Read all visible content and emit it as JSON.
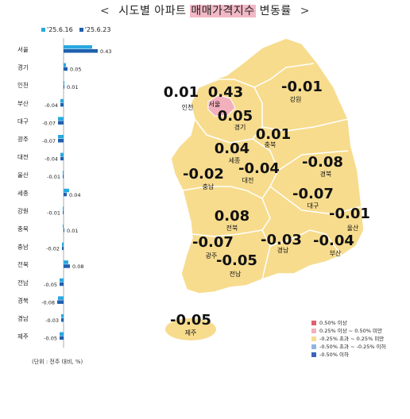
{
  "title": {
    "left_arrow": "<",
    "pre": "시도별 아파트 ",
    "highlight": "매매가격지수",
    "post": " 변동률",
    "right_arrow": ">"
  },
  "chart_data": {
    "type": "bar",
    "orientation": "horizontal",
    "categories": [
      "서울",
      "경기",
      "인천",
      "부산",
      "대구",
      "광주",
      "대전",
      "울산",
      "세종",
      "강원",
      "충북",
      "충남",
      "전북",
      "전남",
      "경북",
      "경남",
      "제주"
    ],
    "series": [
      {
        "name": "'25.6.16",
        "color": "#29a8e0",
        "values": [
          0.36,
          0.03,
          0.01,
          -0.04,
          -0.07,
          -0.07,
          -0.04,
          -0.01,
          0.07,
          -0.01,
          -0.01,
          -0.02,
          0.06,
          -0.05,
          -0.07,
          -0.03,
          -0.05
        ]
      },
      {
        "name": "'25.6.23",
        "color": "#1f5fae",
        "values": [
          0.43,
          0.05,
          0.01,
          -0.04,
          -0.07,
          -0.07,
          -0.04,
          -0.01,
          0.04,
          -0.01,
          0.01,
          -0.02,
          0.08,
          -0.05,
          -0.08,
          -0.03,
          -0.05
        ]
      }
    ],
    "value_labels": [
      "0.43",
      "0.05",
      "0.01",
      "-0.04",
      "-0.07",
      "-0.07",
      "-0.04",
      "-0.01",
      "0.04",
      "-0.01",
      "0.01",
      "-0.02",
      "0.08",
      "-0.05",
      "-0.08",
      "-0.03",
      "-0.05"
    ],
    "xlim": [
      -0.15,
      0.5
    ],
    "note": "(단위 : 전주 대비, %)"
  },
  "map": {
    "regions": [
      {
        "name": "서울",
        "value": "0.43"
      },
      {
        "name": "인천",
        "value": "0.01"
      },
      {
        "name": "경기",
        "value": "0.05"
      },
      {
        "name": "강원",
        "value": "-0.01"
      },
      {
        "name": "충북",
        "value": "0.01"
      },
      {
        "name": "세종",
        "value": "0.04"
      },
      {
        "name": "대전",
        "value": "-0.04"
      },
      {
        "name": "충남",
        "value": "-0.02"
      },
      {
        "name": "경북",
        "value": "-0.08"
      },
      {
        "name": "대구",
        "value": "-0.07"
      },
      {
        "name": "울산",
        "value": "-0.01"
      },
      {
        "name": "전북",
        "value": "0.08"
      },
      {
        "name": "광주",
        "value": "-0.07"
      },
      {
        "name": "전남",
        "value": "-0.05"
      },
      {
        "name": "경남",
        "value": "-0.03"
      },
      {
        "name": "부산",
        "value": "-0.04"
      },
      {
        "name": "제주",
        "value": "-0.05"
      }
    ],
    "legend": [
      {
        "label": "0.50% 이상",
        "color": "#e0606e"
      },
      {
        "label": "0.25% 이상 ~ 0.50% 미만",
        "color": "#f2b0bc"
      },
      {
        "label": "-0.25% 초과 ~ 0.25% 미만",
        "color": "#f7dc8e"
      },
      {
        "label": "-0.50% 초과 ~ -0.25% 이하",
        "color": "#8fb4e3"
      },
      {
        "label": "-0.50% 이하",
        "color": "#3f63b8"
      }
    ]
  }
}
